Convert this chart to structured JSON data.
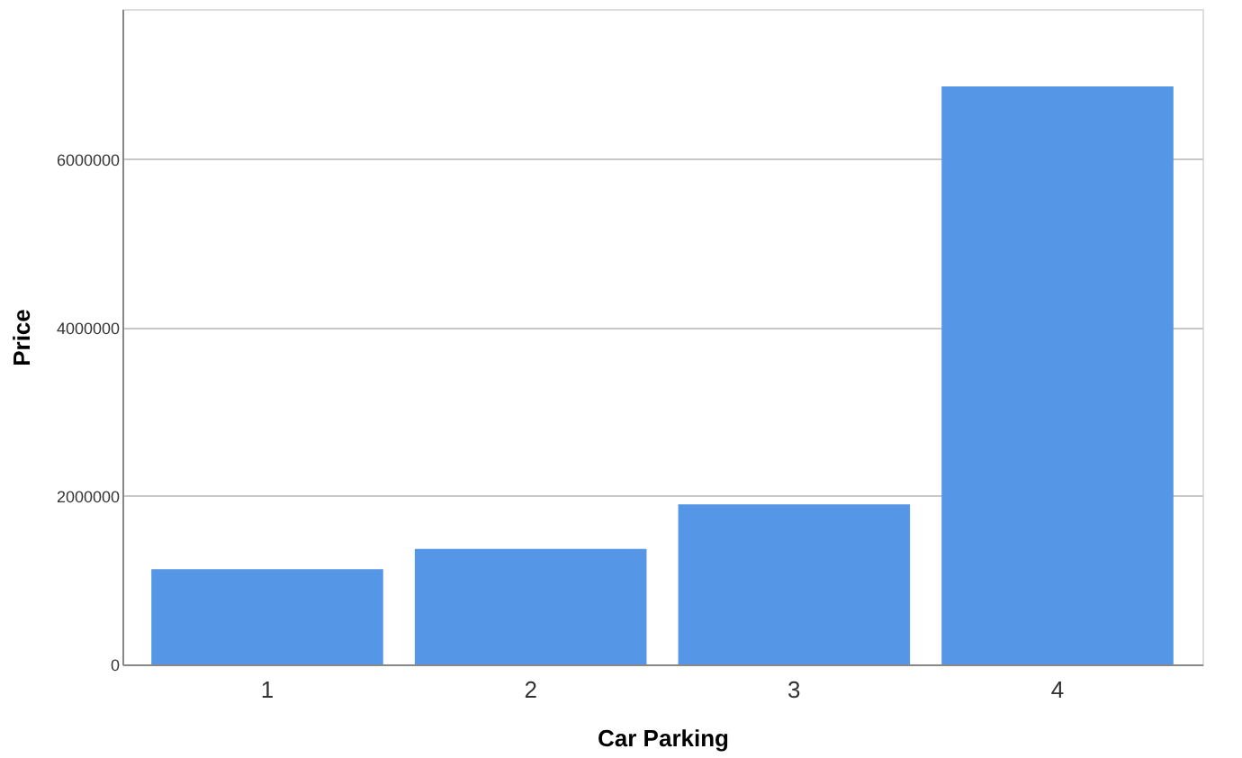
{
  "chart_data": {
    "type": "bar",
    "xlabel": "Car Parking",
    "ylabel": "Price",
    "categories": [
      "1",
      "2",
      "3",
      "4"
    ],
    "values": [
      1130000,
      1370000,
      1900000,
      6860000
    ],
    "color": "#5596e6",
    "ylim": [
      0,
      7780000
    ],
    "yticks": [
      0,
      2000000,
      4000000,
      6000000
    ],
    "grid": "y"
  }
}
